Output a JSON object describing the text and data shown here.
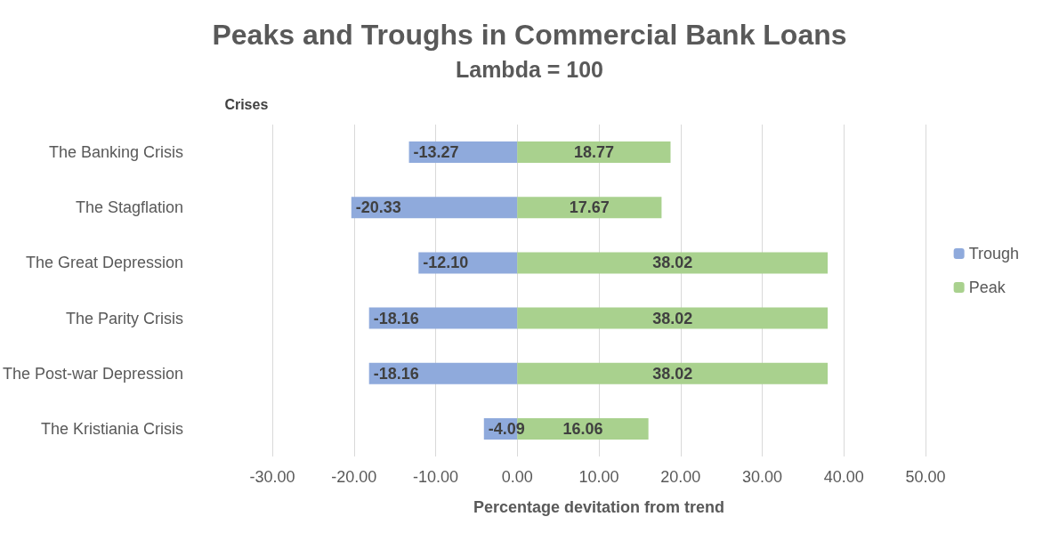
{
  "chart_data": {
    "type": "bar",
    "orientation": "horizontal",
    "stacked": true,
    "title": "Peaks and Troughs in Commercial Bank Loans",
    "subtitle": "Lambda = 100",
    "ylabel": "Crises",
    "xlabel": "Percentage devitation from trend",
    "categories": [
      "The Banking Crisis",
      "The Stagflation",
      "The Great Depression",
      "The Parity Crisis",
      "The Post-war Depression",
      "The Kristiania Crisis"
    ],
    "series": [
      {
        "name": "Trough",
        "color": "#8faadc",
        "values": [
          -13.27,
          -20.33,
          -12.1,
          -18.16,
          -18.16,
          -4.09
        ],
        "value_labels": [
          "-13.27",
          "-20.33",
          "-12.10",
          "-18.16",
          "-18.16",
          "-4.09"
        ]
      },
      {
        "name": "Peak",
        "color": "#a9d18e",
        "values": [
          18.77,
          17.67,
          38.02,
          38.02,
          38.02,
          16.06
        ],
        "value_labels": [
          "18.77",
          "17.67",
          "38.02",
          "38.02",
          "38.02",
          "16.06"
        ]
      }
    ],
    "xlim": [
      -30,
      50
    ],
    "xticks": [
      {
        "value": -30,
        "label": "-30.00"
      },
      {
        "value": -20,
        "label": "-20.00"
      },
      {
        "value": -10,
        "label": "-10.00"
      },
      {
        "value": 0,
        "label": "0.00"
      },
      {
        "value": 10,
        "label": "10.00"
      },
      {
        "value": 20,
        "label": "20.00"
      },
      {
        "value": 30,
        "label": "30.00"
      },
      {
        "value": 40,
        "label": "40.00"
      },
      {
        "value": 50,
        "label": "50.00"
      }
    ],
    "grid": "x",
    "legend": "right"
  }
}
